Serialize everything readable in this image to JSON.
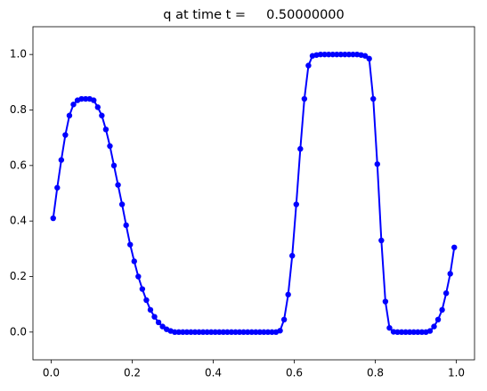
{
  "chart_data": {
    "type": "line",
    "title": "q at time t =     0.50000000",
    "x": [
      0.005,
      0.015,
      0.025,
      0.035,
      0.045,
      0.055,
      0.065,
      0.075,
      0.085,
      0.095,
      0.105,
      0.115,
      0.125,
      0.135,
      0.145,
      0.155,
      0.165,
      0.175,
      0.185,
      0.195,
      0.205,
      0.215,
      0.225,
      0.235,
      0.245,
      0.255,
      0.265,
      0.275,
      0.285,
      0.295,
      0.305,
      0.315,
      0.325,
      0.335,
      0.345,
      0.355,
      0.365,
      0.375,
      0.385,
      0.395,
      0.405,
      0.415,
      0.425,
      0.435,
      0.445,
      0.455,
      0.465,
      0.475,
      0.485,
      0.495,
      0.505,
      0.515,
      0.525,
      0.535,
      0.545,
      0.555,
      0.565,
      0.575,
      0.585,
      0.595,
      0.605,
      0.615,
      0.625,
      0.635,
      0.645,
      0.655,
      0.665,
      0.675,
      0.685,
      0.695,
      0.705,
      0.715,
      0.725,
      0.735,
      0.745,
      0.755,
      0.765,
      0.775,
      0.785,
      0.795,
      0.805,
      0.815,
      0.825,
      0.835,
      0.845,
      0.855,
      0.865,
      0.875,
      0.885,
      0.895,
      0.905,
      0.915,
      0.925,
      0.935,
      0.945,
      0.955,
      0.965,
      0.975,
      0.985,
      0.995
    ],
    "series": [
      {
        "color": "#0000ff",
        "values": [
          0.41,
          0.52,
          0.62,
          0.71,
          0.78,
          0.82,
          0.835,
          0.84,
          0.84,
          0.84,
          0.835,
          0.81,
          0.78,
          0.73,
          0.67,
          0.6,
          0.53,
          0.46,
          0.385,
          0.315,
          0.255,
          0.2,
          0.155,
          0.115,
          0.08,
          0.055,
          0.035,
          0.02,
          0.01,
          0.004,
          0,
          0,
          0,
          0,
          0,
          0,
          0,
          0,
          0,
          0,
          0,
          0,
          0,
          0,
          0,
          0,
          0,
          0,
          0,
          0,
          0,
          0,
          0,
          0,
          0,
          0,
          0.005,
          0.045,
          0.135,
          0.275,
          0.46,
          0.66,
          0.84,
          0.96,
          0.995,
          0.998,
          1,
          1,
          1,
          1,
          1,
          1,
          1,
          1,
          1,
          1,
          0.998,
          0.995,
          0.985,
          0.84,
          0.605,
          0.33,
          0.11,
          0.015,
          0.001,
          0,
          0,
          0,
          0,
          0,
          0,
          0,
          0,
          0.004,
          0.02,
          0.045,
          0.08,
          0.14,
          0.21,
          0.305
        ]
      }
    ],
    "xlim": [
      -0.045,
      1.045
    ],
    "xticks": [
      {
        "value": 0,
        "label": "0.0"
      },
      {
        "value": 0.2,
        "label": "0.2"
      },
      {
        "value": 0.4,
        "label": "0.4"
      },
      {
        "value": 0.6,
        "label": "0.6"
      },
      {
        "value": 0.8,
        "label": "0.8"
      },
      {
        "value": 1,
        "label": "1.0"
      }
    ],
    "ylim": [
      -0.1,
      1.1
    ],
    "yticks": [
      {
        "value": 0,
        "label": "0.0"
      },
      {
        "value": 0.2,
        "label": "0.2"
      },
      {
        "value": 0.4,
        "label": "0.4"
      },
      {
        "value": 0.6,
        "label": "0.6"
      },
      {
        "value": 0.8,
        "label": "0.8"
      },
      {
        "value": 1,
        "label": "1.0"
      }
    ]
  }
}
